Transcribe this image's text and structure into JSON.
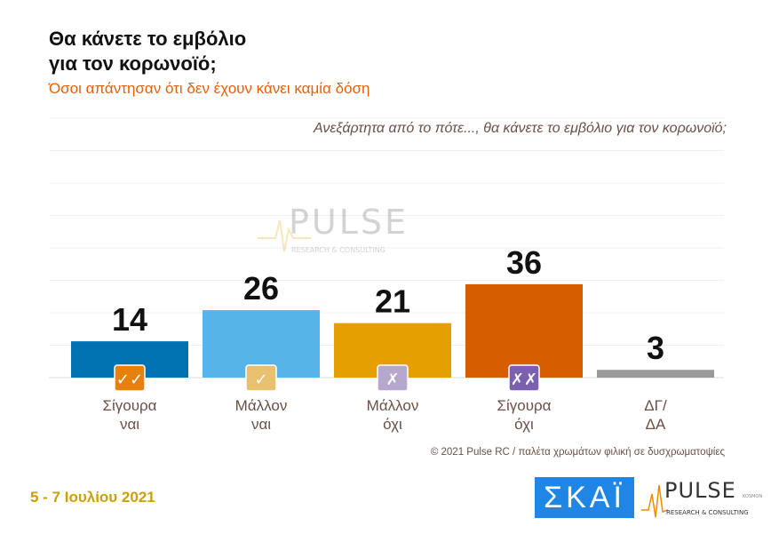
{
  "header": {
    "title": "Θα κάνετε το εμβόλιο\nγια τον κορωνοϊό;",
    "subtitle": "Όσοι απάντησαν ότι δεν έχουν κάνει καμία δόση"
  },
  "chart_data": {
    "type": "bar",
    "title": "Θα κάνετε το εμβόλιο για τον κορωνοϊό;",
    "subtitle": "Ανεξάρτητα από το πότε..., θα κάνετε το εμβόλιο για τον κορωνοϊό;",
    "categories": [
      "Σίγουρα\nναι",
      "Μάλλον\nναι",
      "Μάλλον\nόχι",
      "Σίγουρα\nόχι",
      "ΔΓ/\nΔΑ"
    ],
    "values": [
      14,
      26,
      21,
      36,
      3
    ],
    "colors": [
      "#0072b2",
      "#56b4e9",
      "#e69f00",
      "#d55e00",
      "#999999"
    ],
    "icons": [
      {
        "name": "double-check-icon",
        "glyph": "✓✓",
        "color": "#e8800c"
      },
      {
        "name": "check-icon",
        "glyph": "✓",
        "color": "#e8c070"
      },
      {
        "name": "cross-icon",
        "glyph": "✗",
        "color": "#b5a8cc"
      },
      {
        "name": "double-cross-icon",
        "glyph": "✗✗",
        "color": "#7b5fb0"
      },
      null
    ],
    "ylim": [
      0,
      100
    ],
    "grid": true,
    "legend": "none",
    "xlabel": "",
    "ylabel": ""
  },
  "footer": {
    "source": "© 2021 Pulse RC   /   παλέτα χρωμάτων φιλική σε δυσχρωματοψίες",
    "date": "5 - 7  Ιουλίου  2021"
  },
  "logos": {
    "skai": "ΣΚΑΪ",
    "pulse": "PULSE",
    "pulse_sub": "RESEARCH & CONSULTING",
    "pulse_tag": "KOSMON"
  }
}
